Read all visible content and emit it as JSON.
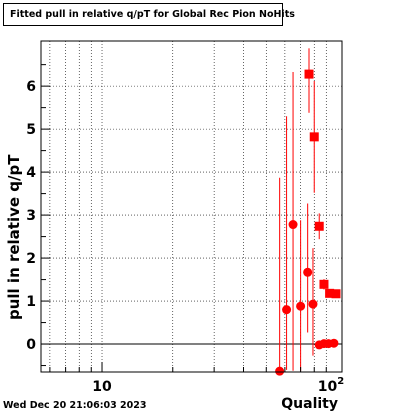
{
  "chart_data": {
    "type": "scatter",
    "title": "Fitted pull in relative q/pT for Global Rec Pion NoHits",
    "xlabel": "Quality",
    "ylabel": "pull in relative q/pT",
    "xscale": "log",
    "xlim": [
      5.5,
      105
    ],
    "ylim": [
      -0.65,
      7.05
    ],
    "grid": true,
    "ytick_labels": [
      "0",
      "1",
      "2",
      "3",
      "4",
      "5",
      "6"
    ],
    "xtick_labels": [
      "10",
      "10^2"
    ],
    "timestamp": "Wed Dec 20 21:06:03 2023",
    "series": [
      {
        "marker": "circle",
        "color": "#ff0000",
        "points": [
          {
            "x": 57,
            "y": -0.63,
            "yerr_low": 0.0,
            "yerr_high": 4.5
          },
          {
            "x": 61,
            "y": 0.8,
            "yerr_low": 1.4,
            "yerr_high": 4.5
          },
          {
            "x": 65,
            "y": 2.78,
            "yerr_low": 3.4,
            "yerr_high": 3.55
          },
          {
            "x": 70,
            "y": 0.88,
            "yerr_low": 1.5,
            "yerr_high": 2.0
          },
          {
            "x": 75,
            "y": 1.67,
            "yerr_low": 1.4,
            "yerr_high": 1.6
          },
          {
            "x": 79,
            "y": 0.93,
            "yerr_low": 1.2,
            "yerr_high": 1.3
          },
          {
            "x": 84,
            "y": -0.02,
            "yerr_low": 0.05,
            "yerr_high": 0.05
          },
          {
            "x": 88,
            "y": 0.01,
            "yerr_low": 0.05,
            "yerr_high": 0.05
          },
          {
            "x": 92,
            "y": 0.01,
            "yerr_low": 0.05,
            "yerr_high": 0.05
          },
          {
            "x": 97,
            "y": 0.02,
            "yerr_low": 0.05,
            "yerr_high": 0.05
          }
        ]
      },
      {
        "marker": "square",
        "color": "#ff0000",
        "points": [
          {
            "x": 76,
            "y": 6.28,
            "yerr_low": 0.9,
            "yerr_high": 0.6
          },
          {
            "x": 80,
            "y": 4.82,
            "yerr_low": 1.3,
            "yerr_high": 1.3
          },
          {
            "x": 84,
            "y": 2.74,
            "yerr_low": 0.3,
            "yerr_high": 0.3
          },
          {
            "x": 88,
            "y": 1.39,
            "yerr_low": 0.12,
            "yerr_high": 0.12
          },
          {
            "x": 93,
            "y": 1.18,
            "yerr_low": 0.08,
            "yerr_high": 0.08
          },
          {
            "x": 99,
            "y": 1.17,
            "yerr_low": 0.08,
            "yerr_high": 0.08
          }
        ]
      }
    ]
  }
}
